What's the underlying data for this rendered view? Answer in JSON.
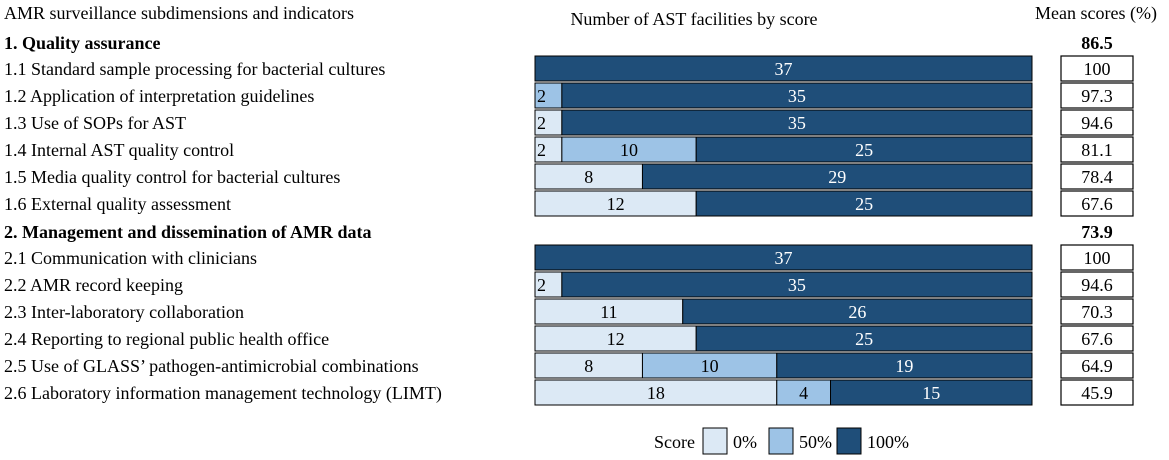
{
  "colors": {
    "score_0": "#dce9f5",
    "score_50": "#9dc3e6",
    "score_100": "#1f4e79",
    "border": "#000000"
  },
  "chart_data": {
    "type": "bar",
    "orientation": "horizontal",
    "stacked": true,
    "title": "Number of AST facilities by score",
    "row_header": "AMR surveillance subdimensions and indicators",
    "mean_header": "Mean scores (%)",
    "legend": {
      "title": "Score",
      "entries": [
        "0%",
        "50%",
        "100%"
      ],
      "placement": "bottom-center"
    },
    "series_names": [
      "0%",
      "50%",
      "100%"
    ],
    "sections": [
      {
        "title": "1. Quality assurance",
        "mean": "86.5",
        "rows": [
          {
            "label": "1.1 Standard sample processing for bacterial cultures",
            "values": [
              0,
              0,
              37
            ],
            "mean": "100"
          },
          {
            "label": "1.2 Application of interpretation guidelines",
            "values": [
              0,
              2,
              35
            ],
            "mean": "97.3"
          },
          {
            "label": "1.3 Use of SOPs for AST",
            "values": [
              2,
              0,
              35
            ],
            "mean": "94.6"
          },
          {
            "label": "1.4 Internal AST quality control",
            "values": [
              2,
              10,
              25
            ],
            "mean": "81.1"
          },
          {
            "label": "1.5 Media quality control for bacterial cultures",
            "values": [
              8,
              0,
              29
            ],
            "mean": "78.4"
          },
          {
            "label": "1.6 External quality assessment",
            "values": [
              12,
              0,
              25
            ],
            "mean": "67.6"
          }
        ]
      },
      {
        "title": "2. Management and dissemination of AMR data",
        "mean": "73.9",
        "rows": [
          {
            "label": "2.1 Communication with clinicians",
            "values": [
              0,
              0,
              37
            ],
            "mean": "100"
          },
          {
            "label": "2.2 AMR record keeping",
            "values": [
              2,
              0,
              35
            ],
            "mean": "94.6"
          },
          {
            "label": "2.3 Inter-laboratory collaboration",
            "values": [
              11,
              0,
              26
            ],
            "mean": "70.3"
          },
          {
            "label": "2.4 Reporting to regional public health office",
            "values": [
              12,
              0,
              25
            ],
            "mean": "67.6"
          },
          {
            "label": "2.5 Use of GLASS’ pathogen-antimicrobial combinations",
            "values": [
              8,
              10,
              19
            ],
            "mean": "64.9"
          },
          {
            "label": "2.6 Laboratory information management technology (LIMT)",
            "values": [
              18,
              4,
              15
            ],
            "mean": "45.9"
          }
        ]
      }
    ]
  }
}
